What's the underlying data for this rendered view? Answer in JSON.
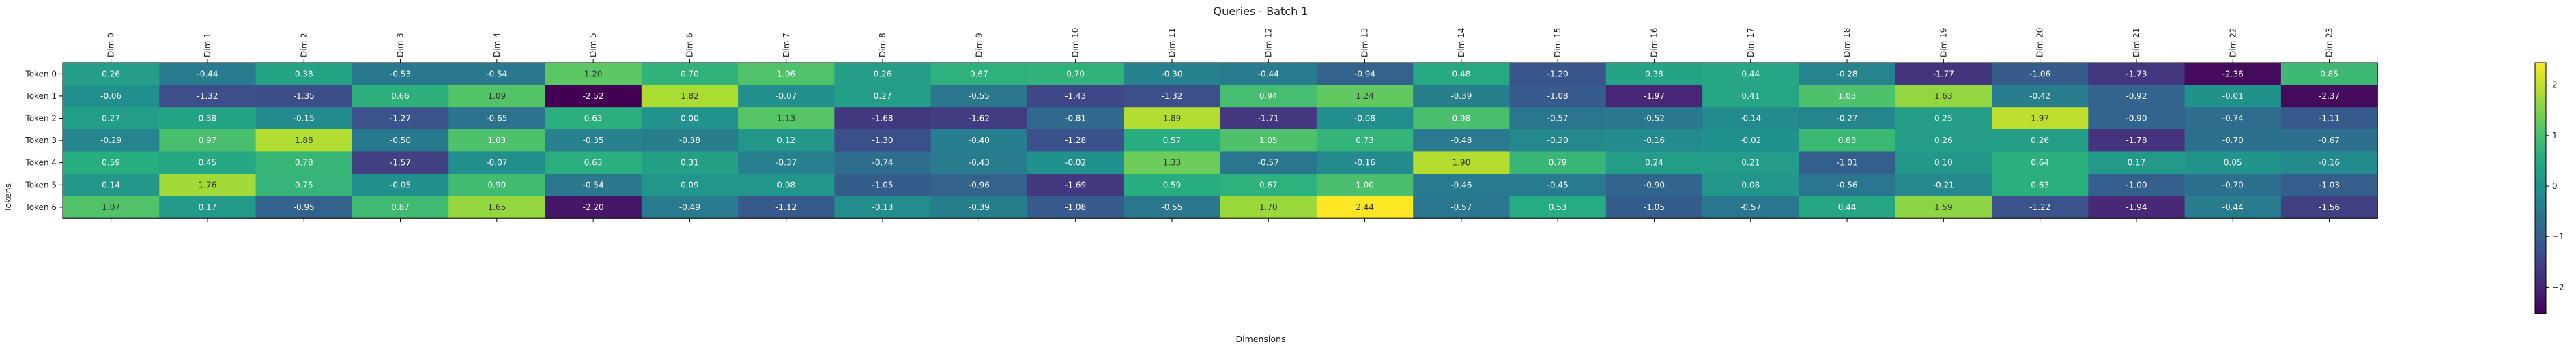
{
  "chart_data": {
    "type": "heatmap",
    "title": "Queries - Batch 1",
    "xlabel": "Dimensions",
    "ylabel": "Tokens",
    "columns": [
      "Dim 0",
      "Dim 1",
      "Dim 2",
      "Dim 3",
      "Dim 4",
      "Dim 5",
      "Dim 6",
      "Dim 7",
      "Dim 8",
      "Dim 9",
      "Dim 10",
      "Dim 11",
      "Dim 12",
      "Dim 13",
      "Dim 14",
      "Dim 15",
      "Dim 16",
      "Dim 17",
      "Dim 18",
      "Dim 19",
      "Dim 20",
      "Dim 21",
      "Dim 22",
      "Dim 23"
    ],
    "rows": [
      "Token 0",
      "Token 1",
      "Token 2",
      "Token 3",
      "Token 4",
      "Token 5",
      "Token 6"
    ],
    "values": [
      [
        0.26,
        -0.44,
        0.38,
        -0.53,
        -0.54,
        1.2,
        0.7,
        1.06,
        0.26,
        0.67,
        0.7,
        -0.3,
        -0.44,
        -0.94,
        0.48,
        -1.2,
        0.38,
        0.44,
        -0.28,
        -1.77,
        -1.06,
        -1.73,
        -2.36,
        0.85
      ],
      [
        -0.06,
        -1.32,
        -1.35,
        0.66,
        1.09,
        -2.52,
        1.82,
        -0.07,
        0.27,
        -0.55,
        -1.43,
        -1.32,
        0.94,
        1.24,
        -0.39,
        -1.08,
        -1.97,
        0.41,
        1.03,
        1.63,
        -0.42,
        -0.92,
        -0.01,
        -2.37
      ],
      [
        0.27,
        0.38,
        -0.15,
        -1.27,
        -0.65,
        0.63,
        -0.0,
        1.13,
        -1.68,
        -1.62,
        -0.81,
        1.89,
        -1.71,
        -0.08,
        0.98,
        -0.57,
        -0.52,
        -0.14,
        -0.27,
        0.25,
        1.97,
        -0.9,
        -0.74,
        -1.11
      ],
      [
        -0.29,
        0.97,
        1.88,
        -0.5,
        1.03,
        -0.35,
        -0.38,
        0.12,
        -1.3,
        -0.4,
        -1.28,
        0.57,
        1.05,
        0.73,
        -0.48,
        -0.2,
        -0.16,
        -0.02,
        0.83,
        0.26,
        0.26,
        -1.78,
        -0.7,
        -0.67
      ],
      [
        0.59,
        0.45,
        0.78,
        -1.57,
        -0.07,
        0.63,
        0.31,
        -0.37,
        -0.74,
        -0.43,
        -0.02,
        1.33,
        -0.57,
        -0.16,
        1.9,
        0.79,
        0.24,
        0.21,
        -1.01,
        0.1,
        0.64,
        0.17,
        0.05,
        -0.16
      ],
      [
        0.14,
        1.76,
        0.75,
        -0.05,
        0.9,
        -0.54,
        0.09,
        0.08,
        -1.05,
        -0.96,
        -1.69,
        0.59,
        0.67,
        1.0,
        -0.46,
        -0.45,
        -0.9,
        0.08,
        -0.56,
        -0.21,
        0.63,
        -1.0,
        -0.7,
        -1.03
      ],
      [
        1.07,
        0.17,
        -0.95,
        0.87,
        1.65,
        -2.2,
        -0.49,
        -1.12,
        -0.13,
        -0.39,
        -1.08,
        -0.55,
        1.7,
        2.44,
        -0.57,
        0.53,
        -1.05,
        -0.57,
        0.44,
        1.59,
        -1.22,
        -1.94,
        -0.44,
        -1.56
      ]
    ],
    "vmin": -2.52,
    "vmax": 2.44,
    "colormap": "viridis",
    "colorbar_ticks": [
      -2,
      -1,
      0,
      1,
      2
    ],
    "grid": false
  }
}
